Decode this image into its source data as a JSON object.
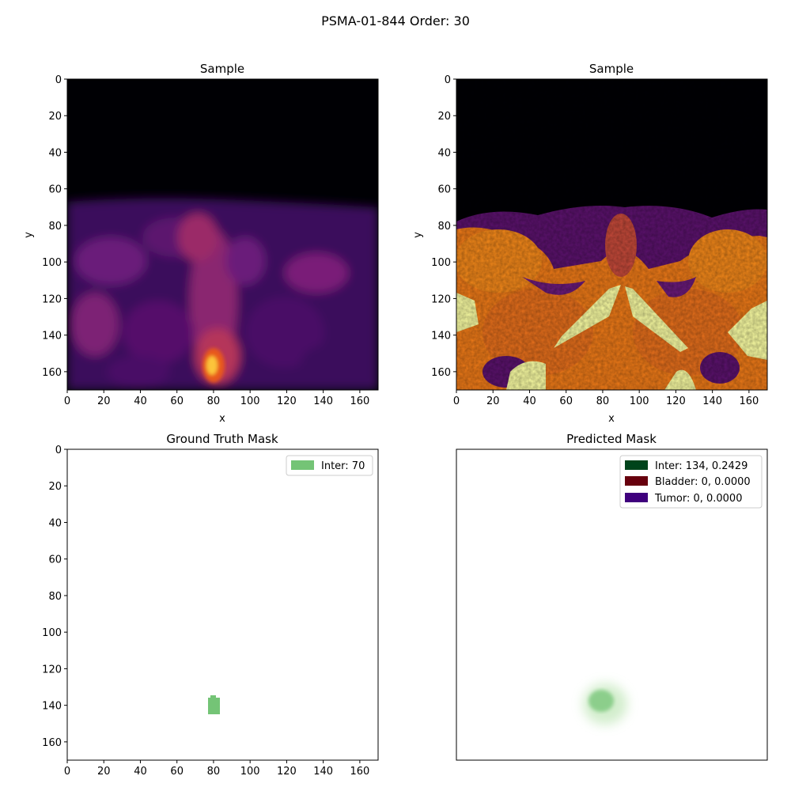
{
  "figure": {
    "title": "PSMA-01-844 Order: 30"
  },
  "colors": {
    "gt_inter": "#74c476",
    "pred_inter": "#00441b",
    "pred_bladder": "#67000d",
    "pred_tumor": "#3f007d",
    "inferno_dark": "#000004",
    "inferno_purple": "#5c126e",
    "inferno_orange": "#f57d15",
    "inferno_yellow": "#fcffa4"
  },
  "panels": [
    {
      "title": "Sample",
      "xlabel": "x",
      "ylabel": "y",
      "xticks": [
        "0",
        "20",
        "40",
        "60",
        "80",
        "100",
        "120",
        "140",
        "160"
      ],
      "yticks": [
        "0",
        "20",
        "40",
        "60",
        "80",
        "100",
        "120",
        "140",
        "160"
      ],
      "colormap": "inferno"
    },
    {
      "title": "Sample",
      "xlabel": "x",
      "ylabel": "y",
      "xticks": [
        "0",
        "20",
        "40",
        "60",
        "80",
        "100",
        "120",
        "140",
        "160"
      ],
      "yticks": [
        "0",
        "20",
        "40",
        "60",
        "80",
        "100",
        "120",
        "140",
        "160"
      ],
      "colormap": "inferno"
    },
    {
      "title": "Ground Truth Mask",
      "xticks": [
        "0",
        "20",
        "40",
        "60",
        "80",
        "100",
        "120",
        "140",
        "160"
      ],
      "yticks": [
        "0",
        "20",
        "40",
        "60",
        "80",
        "100",
        "120",
        "140",
        "160"
      ],
      "legend": [
        "Inter: 70"
      ]
    },
    {
      "title": "Predicted Mask",
      "legend": [
        "Inter: 134, 0.2429",
        "Bladder: 0, 0.0000",
        "Tumor: 0, 0.0000"
      ]
    }
  ],
  "chart_data": [
    {
      "type": "heatmap",
      "title": "Sample",
      "xlabel": "x",
      "ylabel": "y",
      "xlim": [
        0,
        170
      ],
      "ylim": [
        170,
        0
      ],
      "colormap": "inferno",
      "description_values": {
        "dark_region_rows": [
          0,
          65
        ],
        "hotspot_center": [
          80,
          158
        ]
      }
    },
    {
      "type": "heatmap",
      "title": "Sample",
      "xlabel": "x",
      "ylabel": "y",
      "xlim": [
        0,
        170
      ],
      "ylim": [
        170,
        0
      ],
      "colormap": "inferno",
      "description_values": {
        "dark_region_rows": [
          0,
          70
        ]
      }
    },
    {
      "type": "heatmap",
      "title": "Ground Truth Mask",
      "xlim": [
        0,
        170
      ],
      "ylim": [
        170,
        0
      ],
      "series": [
        {
          "name": "Inter: 70",
          "x_range": [
            77,
            83
          ],
          "y_range": [
            134,
            143
          ]
        }
      ]
    },
    {
      "type": "heatmap",
      "title": "Predicted Mask",
      "xlim": [
        0,
        170
      ],
      "ylim": [
        170,
        0
      ],
      "series": [
        {
          "name": "Inter: 134, 0.2429",
          "center": [
            79,
            137
          ]
        },
        {
          "name": "Bladder: 0, 0.0000"
        },
        {
          "name": "Tumor: 0, 0.0000"
        }
      ]
    }
  ]
}
